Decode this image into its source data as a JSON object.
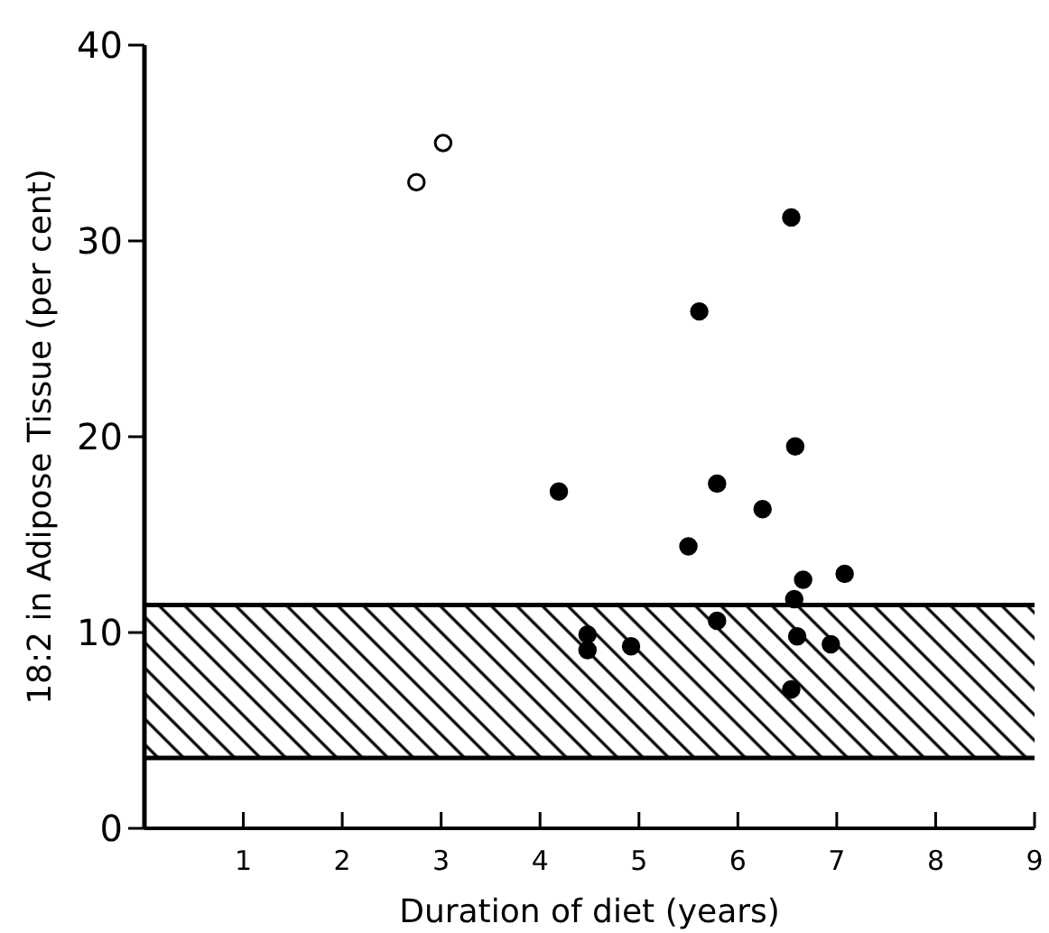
{
  "chart_data": {
    "type": "scatter",
    "xlabel": "Duration of diet (years)",
    "ylabel": "18:2 in Adipose Tissue (per cent)",
    "xlim": [
      0,
      9
    ],
    "xticks": [
      1,
      2,
      3,
      4,
      5,
      6,
      7,
      8,
      9
    ],
    "ylim": [
      0,
      40
    ],
    "yticks": [
      0,
      10,
      20,
      30,
      40
    ],
    "marker": "circle",
    "grid": false,
    "series": [
      {
        "color": "#ffffff",
        "x": [
          2.75,
          3.02
        ],
        "values": [
          33.0,
          35.0
        ]
      },
      {
        "color": "#000000",
        "x": [
          6.54,
          5.61,
          6.58,
          4.19,
          5.79,
          6.25,
          5.5,
          6.66,
          7.08,
          6.57,
          5.79,
          4.48,
          4.48,
          4.92,
          6.6,
          6.94,
          6.54
        ],
        "values": [
          31.2,
          26.4,
          19.5,
          17.2,
          17.6,
          16.3,
          14.4,
          12.7,
          13.0,
          11.7,
          10.6,
          9.9,
          9.1,
          9.3,
          9.8,
          9.4,
          7.1
        ]
      }
    ],
    "bands": [
      {
        "axis": "y",
        "from": 3.6,
        "to": 11.4,
        "color": "#000000"
      }
    ],
    "ref_lines": [
      {
        "axis": "y",
        "value": 11.4,
        "color": "#000000"
      },
      {
        "axis": "y",
        "value": 3.6,
        "color": "#000000"
      }
    ]
  }
}
